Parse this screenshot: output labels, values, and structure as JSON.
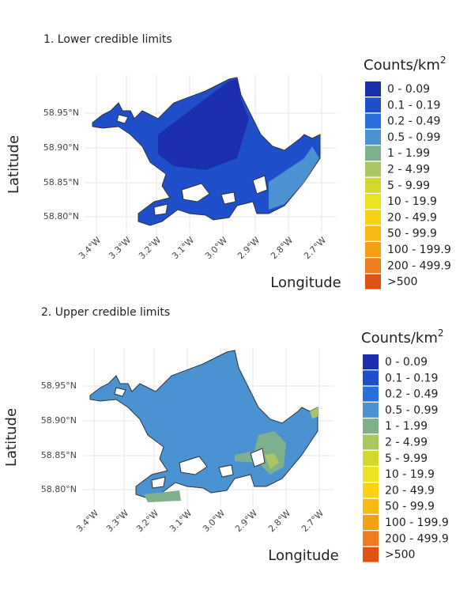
{
  "panels": [
    {
      "title": "1. Lower credible limits",
      "y_label": "Latitude",
      "x_label": "Longitude",
      "yticks": [
        "58.95°N",
        "58.90°N",
        "58.85°N",
        "58.80°N"
      ],
      "xticks": [
        "3.4°W",
        "3.3°W",
        "3.2°W",
        "3.1°W",
        "3.0°W",
        "2.9°W",
        "2.8°W",
        "2.7°W"
      ],
      "legend": {
        "title": "Counts/km",
        "title_sup": "2"
      }
    },
    {
      "title": "2. Upper credible limits",
      "y_label": "Latitude",
      "x_label": "Longitude",
      "yticks": [
        "58.95°N",
        "58.90°N",
        "58.85°N",
        "58.80°N"
      ],
      "xticks": [
        "3.4°W",
        "3.3°W",
        "3.2°W",
        "3.1°W",
        "3.0°W",
        "2.9°W",
        "2.8°W",
        "2.7°W"
      ],
      "legend": {
        "title": "Counts/km",
        "title_sup": "2"
      }
    }
  ],
  "legend_items": [
    {
      "label": "0 - 0.09",
      "color": "#1b2fae"
    },
    {
      "label": "0.1 - 0.19",
      "color": "#1f4fcb"
    },
    {
      "label": "0.2 - 0.49",
      "color": "#2a6edb"
    },
    {
      "label": "0.5 - 0.99",
      "color": "#4a92d2"
    },
    {
      "label": "1 - 1.99",
      "color": "#7fb08e"
    },
    {
      "label": "2 - 4.99",
      "color": "#a9c760"
    },
    {
      "label": "5 - 9.99",
      "color": "#d3d830"
    },
    {
      "label": "10 - 19.9",
      "color": "#ede222"
    },
    {
      "label": "20 - 49.9",
      "color": "#f7d312"
    },
    {
      "label": "50 - 99.9",
      "color": "#f8bb14"
    },
    {
      "label": "100 - 199.9",
      "color": "#f5a014"
    },
    {
      "label": "200 - 499.9",
      "color": "#ef7a1f"
    },
    {
      "label": ">500",
      "color": "#de5214"
    }
  ]
}
